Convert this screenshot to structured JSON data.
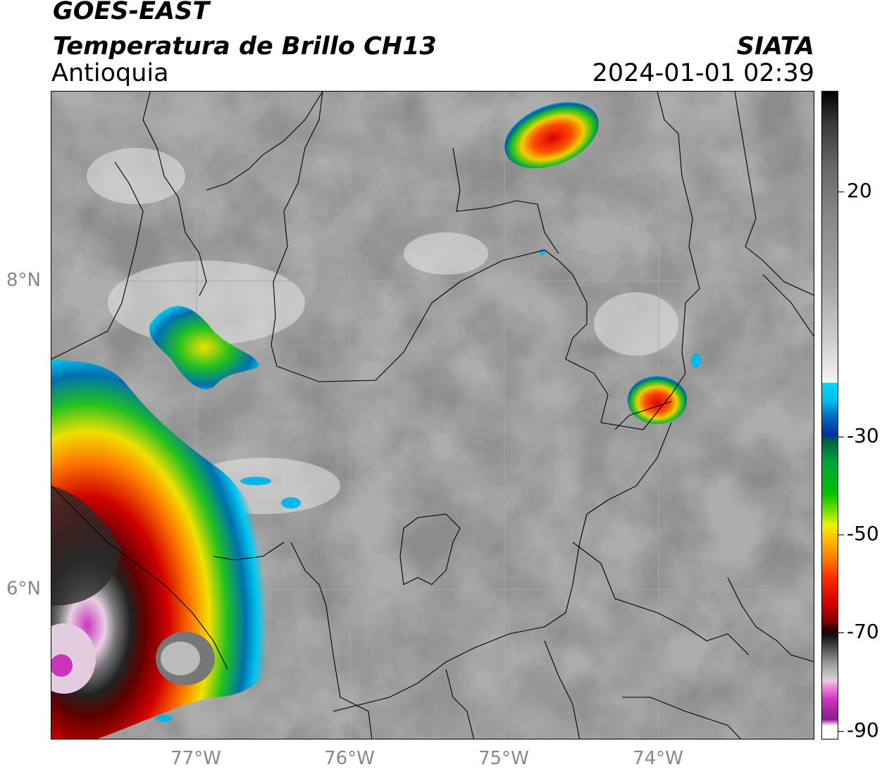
{
  "header": {
    "satellite": "GOES-EAST",
    "product": "Temperatura de Brillo CH13",
    "brand": "SIATA",
    "region": "Antioquia",
    "timestamp": "2024-01-01 02:39"
  },
  "map": {
    "lat_ticks": [
      "8°N",
      "6°N"
    ],
    "lon_ticks": [
      "77°W",
      "76°W",
      "75°W",
      "74°W"
    ]
  },
  "colorbar": {
    "ticks": [
      "20",
      "-30",
      "-50",
      "-70",
      "-90"
    ],
    "colors": {
      "black": "#000000",
      "magenta": "#cc33bb",
      "cyan": "#00c8f0",
      "blue": "#0040a0",
      "green": "#00c000",
      "yellow": "#f0e000",
      "orange": "#ff8000",
      "red": "#e00000",
      "darkred": "#600000",
      "white": "#ffffff"
    }
  }
}
